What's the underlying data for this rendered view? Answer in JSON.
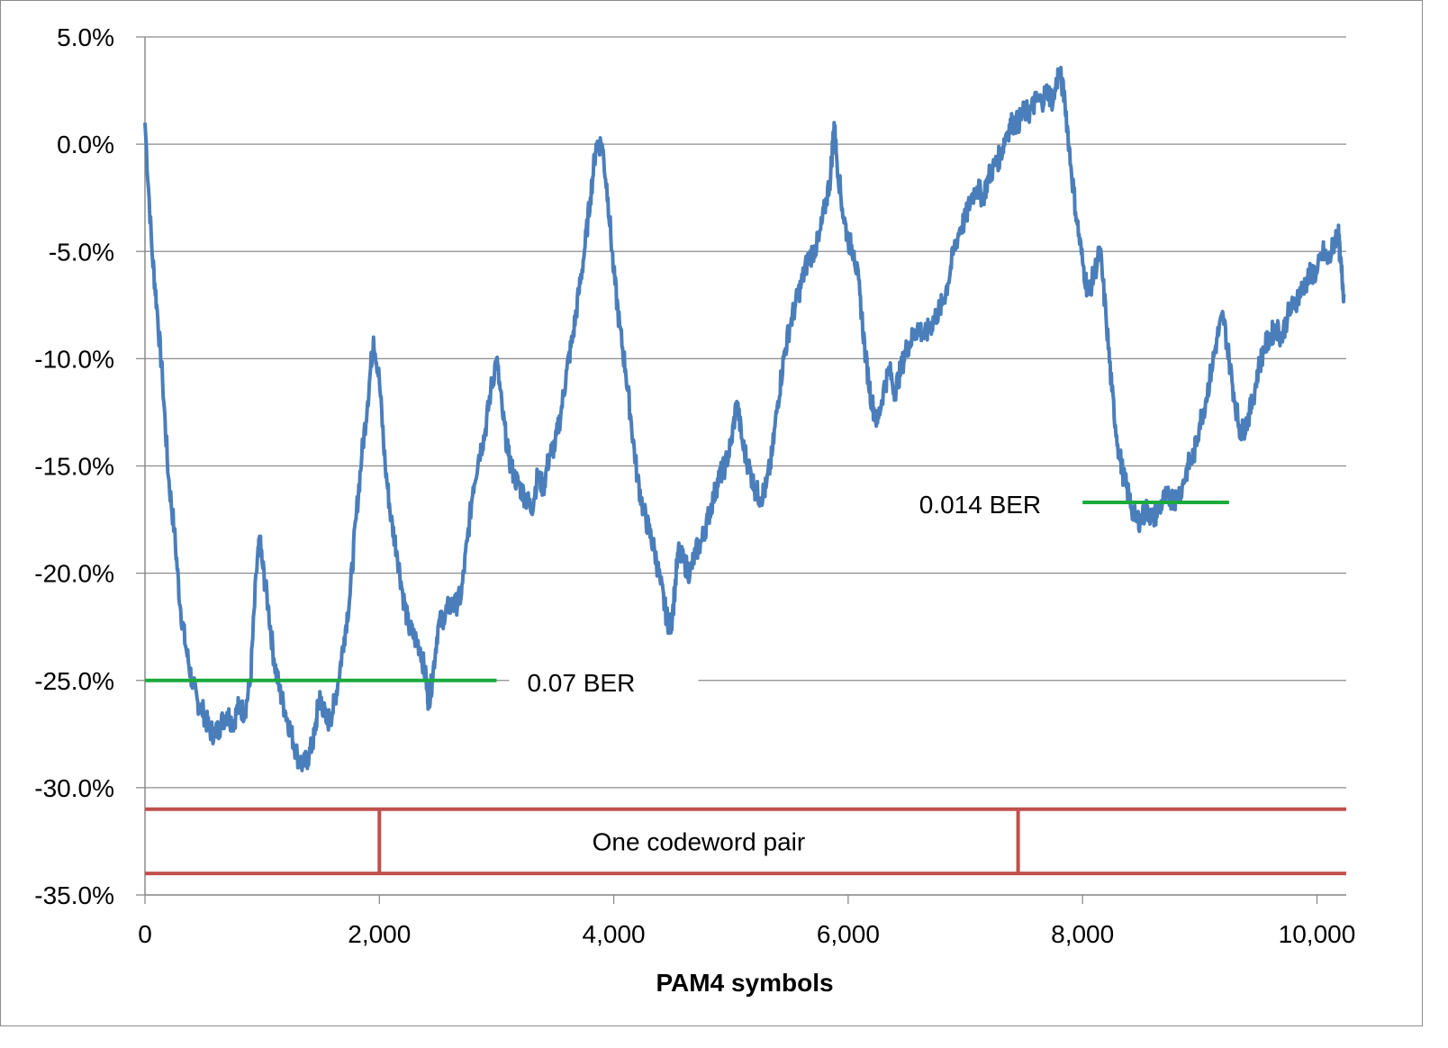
{
  "chart_data": {
    "type": "line",
    "title": "",
    "xlabel": "PAM4 symbols",
    "ylabel": "",
    "xlim": [
      0,
      10250
    ],
    "ylim": [
      -35.0,
      5.0
    ],
    "grid": true,
    "legend": "none",
    "x_ticks": [
      {
        "value": 0,
        "label": "0"
      },
      {
        "value": 2000,
        "label": "2,000"
      },
      {
        "value": 4000,
        "label": "4,000"
      },
      {
        "value": 6000,
        "label": "6,000"
      },
      {
        "value": 8000,
        "label": "8,000"
      },
      {
        "value": 10000,
        "label": "10,000"
      }
    ],
    "y_ticks": [
      {
        "value": 5,
        "label": "5.0%"
      },
      {
        "value": 0,
        "label": "0.0%"
      },
      {
        "value": -5,
        "label": "-5.0%"
      },
      {
        "value": -10,
        "label": "-10.0%"
      },
      {
        "value": -15,
        "label": "-15.0%"
      },
      {
        "value": -20,
        "label": "-20.0%"
      },
      {
        "value": -25,
        "label": "-25.0%"
      },
      {
        "value": -30,
        "label": "-30.0%"
      },
      {
        "value": -35,
        "label": "-35.0%"
      }
    ],
    "series": [
      {
        "color": "#4a7ebb",
        "points": [
          [
            0,
            1.0
          ],
          [
            60,
            -5.0
          ],
          [
            100,
            -7.5
          ],
          [
            150,
            -11.0
          ],
          [
            200,
            -15.5
          ],
          [
            250,
            -18.0
          ],
          [
            300,
            -21.5
          ],
          [
            350,
            -23.5
          ],
          [
            400,
            -25.0
          ],
          [
            450,
            -26.0
          ],
          [
            500,
            -26.5
          ],
          [
            550,
            -27.3
          ],
          [
            600,
            -27.5
          ],
          [
            650,
            -27.0
          ],
          [
            700,
            -26.5
          ],
          [
            750,
            -27.0
          ],
          [
            800,
            -26.2
          ],
          [
            850,
            -26.5
          ],
          [
            900,
            -25.0
          ],
          [
            950,
            -20.0
          ],
          [
            980,
            -18.5
          ],
          [
            1000,
            -19.5
          ],
          [
            1050,
            -21.5
          ],
          [
            1100,
            -24.0
          ],
          [
            1150,
            -25.5
          ],
          [
            1200,
            -26.5
          ],
          [
            1250,
            -27.5
          ],
          [
            1300,
            -28.5
          ],
          [
            1350,
            -29.0
          ],
          [
            1400,
            -28.5
          ],
          [
            1450,
            -27.5
          ],
          [
            1480,
            -26.0
          ],
          [
            1500,
            -25.8
          ],
          [
            1550,
            -27.0
          ],
          [
            1600,
            -26.5
          ],
          [
            1650,
            -25.0
          ],
          [
            1700,
            -23.0
          ],
          [
            1750,
            -21.0
          ],
          [
            1800,
            -17.5
          ],
          [
            1850,
            -14.5
          ],
          [
            1900,
            -12.0
          ],
          [
            1950,
            -9.0
          ],
          [
            2000,
            -11.0
          ],
          [
            2050,
            -15.0
          ],
          [
            2100,
            -17.5
          ],
          [
            2150,
            -19.0
          ],
          [
            2200,
            -21.0
          ],
          [
            2250,
            -22.5
          ],
          [
            2300,
            -23.0
          ],
          [
            2350,
            -23.5
          ],
          [
            2400,
            -25.0
          ],
          [
            2420,
            -26.0
          ],
          [
            2450,
            -25.0
          ],
          [
            2500,
            -22.5
          ],
          [
            2550,
            -22.0
          ],
          [
            2600,
            -21.5
          ],
          [
            2650,
            -21.5
          ],
          [
            2700,
            -21.0
          ],
          [
            2750,
            -18.5
          ],
          [
            2800,
            -16.0
          ],
          [
            2850,
            -14.5
          ],
          [
            2900,
            -13.5
          ],
          [
            2950,
            -11.5
          ],
          [
            3000,
            -10.0
          ],
          [
            3050,
            -12.5
          ],
          [
            3100,
            -14.5
          ],
          [
            3150,
            -15.5
          ],
          [
            3200,
            -16.0
          ],
          [
            3250,
            -16.5
          ],
          [
            3300,
            -17.0
          ],
          [
            3350,
            -15.5
          ],
          [
            3400,
            -16.0
          ],
          [
            3450,
            -14.5
          ],
          [
            3500,
            -14.0
          ],
          [
            3550,
            -12.5
          ],
          [
            3600,
            -10.5
          ],
          [
            3650,
            -9.0
          ],
          [
            3700,
            -7.0
          ],
          [
            3750,
            -5.0
          ],
          [
            3800,
            -2.5
          ],
          [
            3850,
            0.0
          ],
          [
            3900,
            0.0
          ],
          [
            3950,
            -2.5
          ],
          [
            4000,
            -6.0
          ],
          [
            4050,
            -8.5
          ],
          [
            4100,
            -10.5
          ],
          [
            4150,
            -13.0
          ],
          [
            4200,
            -15.5
          ],
          [
            4250,
            -17.0
          ],
          [
            4300,
            -18.0
          ],
          [
            4350,
            -19.0
          ],
          [
            4400,
            -20.5
          ],
          [
            4450,
            -22.0
          ],
          [
            4480,
            -22.5
          ],
          [
            4500,
            -22.0
          ],
          [
            4550,
            -19.0
          ],
          [
            4600,
            -19.5
          ],
          [
            4650,
            -20.0
          ],
          [
            4700,
            -19.0
          ],
          [
            4750,
            -18.5
          ],
          [
            4800,
            -17.5
          ],
          [
            4850,
            -16.5
          ],
          [
            4900,
            -15.5
          ],
          [
            4950,
            -15.0
          ],
          [
            5000,
            -14.0
          ],
          [
            5050,
            -12.0
          ],
          [
            5100,
            -14.0
          ],
          [
            5150,
            -15.0
          ],
          [
            5200,
            -16.0
          ],
          [
            5250,
            -16.5
          ],
          [
            5300,
            -16.0
          ],
          [
            5350,
            -14.5
          ],
          [
            5400,
            -12.0
          ],
          [
            5450,
            -10.0
          ],
          [
            5500,
            -8.5
          ],
          [
            5550,
            -7.5
          ],
          [
            5600,
            -6.5
          ],
          [
            5650,
            -5.5
          ],
          [
            5700,
            -5.0
          ],
          [
            5750,
            -4.5
          ],
          [
            5800,
            -3.0
          ],
          [
            5850,
            -1.5
          ],
          [
            5880,
            1.0
          ],
          [
            5900,
            -0.5
          ],
          [
            5950,
            -3.0
          ],
          [
            6000,
            -4.5
          ],
          [
            6050,
            -5.0
          ],
          [
            6100,
            -7.0
          ],
          [
            6150,
            -10.0
          ],
          [
            6200,
            -12.0
          ],
          [
            6250,
            -13.0
          ],
          [
            6300,
            -11.5
          ],
          [
            6350,
            -10.5
          ],
          [
            6400,
            -11.5
          ],
          [
            6450,
            -10.5
          ],
          [
            6500,
            -9.5
          ],
          [
            6550,
            -9.0
          ],
          [
            6600,
            -8.5
          ],
          [
            6650,
            -9.0
          ],
          [
            6700,
            -8.5
          ],
          [
            6750,
            -8.0
          ],
          [
            6800,
            -7.5
          ],
          [
            6850,
            -6.5
          ],
          [
            6900,
            -5.0
          ],
          [
            6950,
            -4.0
          ],
          [
            7000,
            -3.5
          ],
          [
            7050,
            -2.5
          ],
          [
            7100,
            -2.0
          ],
          [
            7150,
            -2.5
          ],
          [
            7200,
            -1.5
          ],
          [
            7250,
            -1.0
          ],
          [
            7300,
            -0.5
          ],
          [
            7350,
            0.5
          ],
          [
            7400,
            1.0
          ],
          [
            7450,
            1.0
          ],
          [
            7500,
            1.5
          ],
          [
            7550,
            1.5
          ],
          [
            7600,
            2.0
          ],
          [
            7650,
            2.0
          ],
          [
            7700,
            2.5
          ],
          [
            7750,
            2.0
          ],
          [
            7800,
            3.5
          ],
          [
            7850,
            2.0
          ],
          [
            7900,
            -1.0
          ],
          [
            7950,
            -3.5
          ],
          [
            8000,
            -5.5
          ],
          [
            8050,
            -7.0
          ],
          [
            8100,
            -6.0
          ],
          [
            8150,
            -5.0
          ],
          [
            8200,
            -8.0
          ],
          [
            8250,
            -11.5
          ],
          [
            8300,
            -14.0
          ],
          [
            8350,
            -15.5
          ],
          [
            8400,
            -16.5
          ],
          [
            8450,
            -17.5
          ],
          [
            8500,
            -17.5
          ],
          [
            8550,
            -17.0
          ],
          [
            8600,
            -17.5
          ],
          [
            8650,
            -17.0
          ],
          [
            8700,
            -16.5
          ],
          [
            8750,
            -16.5
          ],
          [
            8800,
            -16.5
          ],
          [
            8850,
            -16.0
          ],
          [
            8900,
            -15.0
          ],
          [
            8950,
            -14.5
          ],
          [
            9000,
            -13.0
          ],
          [
            9050,
            -12.0
          ],
          [
            9100,
            -10.5
          ],
          [
            9150,
            -9.0
          ],
          [
            9200,
            -8.0
          ],
          [
            9250,
            -10.0
          ],
          [
            9300,
            -12.0
          ],
          [
            9350,
            -13.5
          ],
          [
            9400,
            -13.0
          ],
          [
            9450,
            -12.0
          ],
          [
            9500,
            -10.5
          ],
          [
            9550,
            -9.5
          ],
          [
            9600,
            -9.0
          ],
          [
            9650,
            -8.5
          ],
          [
            9700,
            -9.0
          ],
          [
            9750,
            -8.0
          ],
          [
            9800,
            -7.5
          ],
          [
            9850,
            -7.0
          ],
          [
            9900,
            -6.5
          ],
          [
            9950,
            -6.0
          ],
          [
            10000,
            -6.0
          ],
          [
            10050,
            -5.0
          ],
          [
            10100,
            -5.5
          ],
          [
            10150,
            -4.5
          ],
          [
            10180,
            -4.0
          ],
          [
            10200,
            -5.5
          ],
          [
            10230,
            -7.0
          ]
        ]
      }
    ],
    "annotations": [
      {
        "text": "0.07 BER",
        "color": "#1aaa3c",
        "line": {
          "x0": 0,
          "x1": 3000,
          "y": -25.0
        }
      },
      {
        "text": "0.014 BER",
        "color": "#1aaa3c",
        "line": {
          "x0": 8000,
          "x1": 9250,
          "y": -16.7
        }
      },
      {
        "text": "One codeword pair",
        "color": "#c0504d",
        "bracket": {
          "x0": 0,
          "x1": 10250,
          "y_top": -31.0,
          "y_bottom": -34.0,
          "dividers": [
            2000,
            7450
          ]
        }
      }
    ]
  }
}
